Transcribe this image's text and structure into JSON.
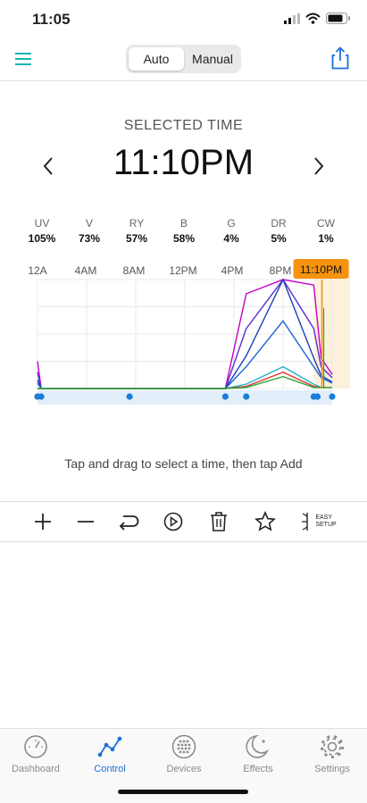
{
  "status_bar": {
    "time": "11:05"
  },
  "header": {
    "mode_auto": "Auto",
    "mode_manual": "Manual"
  },
  "selected": {
    "title": "SELECTED TIME",
    "time": "11:10PM"
  },
  "channels": [
    {
      "name": "UV",
      "value": "105%"
    },
    {
      "name": "V",
      "value": "73%"
    },
    {
      "name": "RY",
      "value": "57%"
    },
    {
      "name": "B",
      "value": "58%"
    },
    {
      "name": "G",
      "value": "4%"
    },
    {
      "name": "DR",
      "value": "5%"
    },
    {
      "name": "CW",
      "value": "1%"
    }
  ],
  "time_axis": [
    "12A",
    "4AM",
    "8AM",
    "12PM",
    "4PM",
    "8PM"
  ],
  "chart_data": {
    "type": "line",
    "x": [
      0,
      0.3,
      15.3,
      17,
      20,
      22.5,
      23.1,
      24
    ],
    "series": [
      {
        "color": "#c800c8",
        "values": [
          25,
          0,
          0,
          87,
          100,
          95,
          28,
          13
        ]
      },
      {
        "color": "#5b2bd6",
        "values": [
          15,
          0,
          0,
          55,
          100,
          55,
          20,
          10
        ]
      },
      {
        "color": "#1c3fb8",
        "values": [
          8,
          0,
          0,
          30,
          100,
          28,
          12,
          6
        ]
      },
      {
        "color": "#1a63d8",
        "values": [
          5,
          0,
          0,
          20,
          62,
          20,
          10,
          5
        ]
      },
      {
        "color": "#22b3c9",
        "values": [
          0,
          0,
          0,
          4,
          20,
          4,
          1,
          1
        ]
      },
      {
        "color": "#e0342e",
        "values": [
          0,
          0,
          0,
          2,
          15,
          2,
          1,
          1
        ]
      },
      {
        "color": "#2aa63a",
        "values": [
          0,
          0,
          0,
          1,
          11,
          1,
          1,
          1
        ]
      }
    ],
    "keyframes": [
      0,
      0.3,
      7.5,
      15.3,
      17,
      22.5,
      22.8,
      24
    ],
    "selected_x": 23.1667,
    "selected_label": "11:10PM",
    "xlim": [
      0,
      24
    ],
    "ylim": [
      0,
      100
    ],
    "accent": "#f5930f"
  },
  "hint": "Tap and drag to select a time, then tap Add",
  "toolbar": {
    "easy_setup_line1": "EASY",
    "easy_setup_line2": "SETUP"
  },
  "tabs": [
    {
      "label": "Dashboard",
      "icon": "gauge-icon"
    },
    {
      "label": "Control",
      "icon": "chart-line-icon"
    },
    {
      "label": "Devices",
      "icon": "dots-grid-icon"
    },
    {
      "label": "Effects",
      "icon": "moon-stars-icon"
    },
    {
      "label": "Settings",
      "icon": "gear-icon"
    }
  ],
  "active_tab": "Control",
  "colors": {
    "accent": "#1d9fd8",
    "active_tab": "#1d6fd8"
  }
}
